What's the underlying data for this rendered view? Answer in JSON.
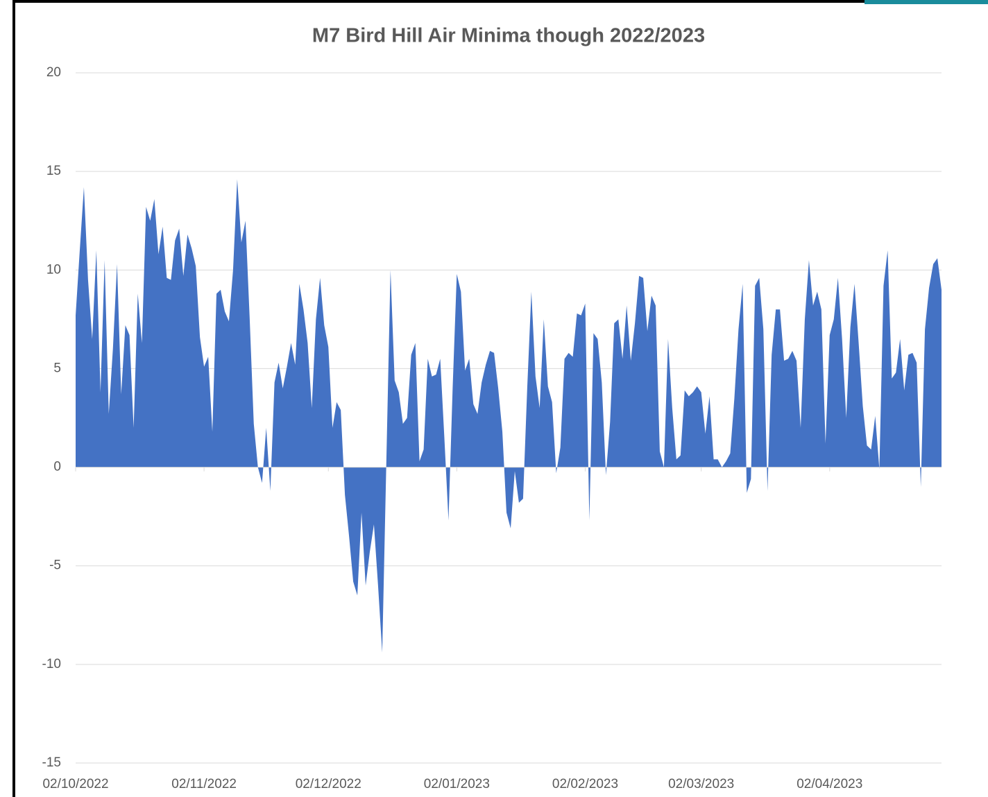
{
  "chart_data": {
    "type": "area",
    "title": "M7 Bird Hill Air Minima though 2022/2023",
    "color": "#4472c4",
    "grid": true,
    "ylim": [
      -15,
      20
    ],
    "yticks": [
      -15,
      -10,
      -5,
      0,
      5,
      10,
      15,
      20
    ],
    "xticks": [
      "02/10/2022",
      "02/11/2022",
      "02/12/2022",
      "02/01/2023",
      "02/02/2023",
      "02/03/2023",
      "02/04/2023"
    ],
    "x": [
      "02/10/2022",
      "03/10/2022",
      "04/10/2022",
      "05/10/2022",
      "06/10/2022",
      "07/10/2022",
      "08/10/2022",
      "09/10/2022",
      "10/10/2022",
      "11/10/2022",
      "12/10/2022",
      "13/10/2022",
      "14/10/2022",
      "15/10/2022",
      "16/10/2022",
      "17/10/2022",
      "18/10/2022",
      "19/10/2022",
      "20/10/2022",
      "21/10/2022",
      "22/10/2022",
      "23/10/2022",
      "24/10/2022",
      "25/10/2022",
      "26/10/2022",
      "27/10/2022",
      "28/10/2022",
      "29/10/2022",
      "30/10/2022",
      "31/10/2022",
      "01/11/2022",
      "02/11/2022",
      "03/11/2022",
      "04/11/2022",
      "05/11/2022",
      "06/11/2022",
      "07/11/2022",
      "08/11/2022",
      "09/11/2022",
      "10/11/2022",
      "11/11/2022",
      "12/11/2022",
      "13/11/2022",
      "14/11/2022",
      "15/11/2022",
      "16/11/2022",
      "17/11/2022",
      "18/11/2022",
      "19/11/2022",
      "20/11/2022",
      "21/11/2022",
      "22/11/2022",
      "23/11/2022",
      "24/11/2022",
      "25/11/2022",
      "26/11/2022",
      "27/11/2022",
      "28/11/2022",
      "29/11/2022",
      "30/11/2022",
      "01/12/2022",
      "02/12/2022",
      "03/12/2022",
      "04/12/2022",
      "05/12/2022",
      "06/12/2022",
      "07/12/2022",
      "08/12/2022",
      "09/12/2022",
      "10/12/2022",
      "11/12/2022",
      "12/12/2022",
      "13/12/2022",
      "14/12/2022",
      "15/12/2022",
      "16/12/2022",
      "17/12/2022",
      "18/12/2022",
      "19/12/2022",
      "20/12/2022",
      "21/12/2022",
      "22/12/2022",
      "23/12/2022",
      "24/12/2022",
      "25/12/2022",
      "26/12/2022",
      "27/12/2022",
      "28/12/2022",
      "29/12/2022",
      "30/12/2022",
      "31/12/2022",
      "01/01/2023",
      "02/01/2023",
      "03/01/2023",
      "04/01/2023",
      "05/01/2023",
      "06/01/2023",
      "07/01/2023",
      "08/01/2023",
      "09/01/2023",
      "10/01/2023",
      "11/01/2023",
      "12/01/2023",
      "13/01/2023",
      "14/01/2023",
      "15/01/2023",
      "16/01/2023",
      "17/01/2023",
      "18/01/2023",
      "19/01/2023",
      "20/01/2023",
      "21/01/2023",
      "22/01/2023",
      "23/01/2023",
      "24/01/2023",
      "25/01/2023",
      "26/01/2023",
      "27/01/2023",
      "28/01/2023",
      "29/01/2023",
      "30/01/2023",
      "31/01/2023",
      "01/02/2023",
      "02/02/2023",
      "03/02/2023",
      "04/02/2023",
      "05/02/2023",
      "06/02/2023",
      "07/02/2023",
      "08/02/2023",
      "09/02/2023",
      "10/02/2023",
      "11/02/2023",
      "12/02/2023",
      "13/02/2023",
      "14/02/2023",
      "15/02/2023",
      "16/02/2023",
      "17/02/2023",
      "18/02/2023",
      "19/02/2023",
      "20/02/2023",
      "21/02/2023",
      "22/02/2023",
      "23/02/2023",
      "24/02/2023",
      "25/02/2023",
      "26/02/2023",
      "27/02/2023",
      "28/02/2023",
      "01/03/2023",
      "02/03/2023",
      "03/03/2023",
      "04/03/2023",
      "05/03/2023",
      "06/03/2023",
      "07/03/2023",
      "08/03/2023",
      "09/03/2023",
      "10/03/2023",
      "11/03/2023",
      "12/03/2023",
      "13/03/2023",
      "14/03/2023",
      "15/03/2023",
      "16/03/2023",
      "17/03/2023",
      "18/03/2023",
      "19/03/2023",
      "20/03/2023",
      "21/03/2023",
      "22/03/2023",
      "23/03/2023",
      "24/03/2023",
      "25/03/2023",
      "26/03/2023",
      "27/03/2023",
      "28/03/2023",
      "29/03/2023",
      "30/03/2023",
      "31/03/2023",
      "01/04/2023",
      "02/04/2023",
      "03/04/2023",
      "04/04/2023",
      "05/04/2023",
      "06/04/2023",
      "07/04/2023",
      "08/04/2023",
      "09/04/2023",
      "10/04/2023",
      "11/04/2023",
      "12/04/2023",
      "13/04/2023",
      "14/04/2023",
      "15/04/2023",
      "16/04/2023",
      "17/04/2023",
      "18/04/2023",
      "19/04/2023",
      "20/04/2023",
      "21/04/2023",
      "22/04/2023",
      "23/04/2023",
      "24/04/2023",
      "25/04/2023",
      "26/04/2023",
      "27/04/2023",
      "28/04/2023",
      "29/04/2023"
    ],
    "values": [
      7.7,
      11,
      14.2,
      9.5,
      6.5,
      11,
      3.8,
      10.5,
      2.7,
      6,
      10.3,
      3.7,
      7.2,
      6.7,
      2,
      8.8,
      6.3,
      13.2,
      12.5,
      13.6,
      10.8,
      12.2,
      9.6,
      9.5,
      11.5,
      12.1,
      9.7,
      11.8,
      11.1,
      10.2,
      6.6,
      5.1,
      5.6,
      1.8,
      8.8,
      9,
      7.9,
      7.4,
      10,
      14.6,
      11.4,
      12.5,
      7.6,
      2.2,
      0,
      -0.8,
      2,
      -1.2,
      4.3,
      5.3,
      4,
      5.1,
      6.3,
      5.2,
      9.3,
      8,
      6.3,
      3,
      7.5,
      9.6,
      7.2,
      6.1,
      2,
      3.3,
      2.9,
      -1.4,
      -3.5,
      -5.8,
      -6.5,
      -2.3,
      -6,
      -4.3,
      -2.9,
      -6,
      -9.4,
      0.3,
      10,
      4.4,
      3.8,
      2.2,
      2.5,
      5.7,
      6.3,
      0.3,
      0.9,
      5.5,
      4.6,
      4.7,
      5.5,
      1.5,
      -2.7,
      4,
      9.8,
      8.9,
      4.9,
      5.5,
      3.2,
      2.7,
      4.3,
      5.2,
      5.9,
      5.8,
      4,
      1.8,
      -2.3,
      -3.1,
      -0.2,
      -1.8,
      -1.6,
      4,
      8.9,
      4.6,
      3,
      7.5,
      4.1,
      3.3,
      -0.3,
      1,
      5.5,
      5.8,
      5.6,
      7.8,
      7.7,
      8.3,
      -2.7,
      6.8,
      6.5,
      4.3,
      -0.4,
      2.3,
      7.3,
      7.5,
      5.5,
      8.2,
      5.4,
      7.3,
      9.7,
      9.6,
      6.9,
      8.7,
      8.2,
      0.8,
      0,
      6.5,
      3,
      0.4,
      0.6,
      3.9,
      3.6,
      3.8,
      4.1,
      3.8,
      1.7,
      3.6,
      0.4,
      0.4,
      0,
      0.3,
      0.7,
      3.5,
      7,
      9.3,
      -1.3,
      -0.6,
      9.2,
      9.6,
      7,
      -1.2,
      5.7,
      8,
      8,
      5.4,
      5.5,
      5.9,
      5.4,
      2,
      7.5,
      10.5,
      8.2,
      8.9,
      8,
      1.2,
      6.7,
      7.5,
      9.6,
      6.5,
      2.5,
      7.1,
      9.3,
      6.3,
      3.1,
      1.1,
      0.9,
      2.6,
      -0.1,
      9.2,
      11,
      4.5,
      4.8,
      6.5,
      3.9,
      5.7,
      5.8,
      5.3,
      -1,
      7,
      9.1,
      10.3,
      10.6,
      9
    ]
  }
}
